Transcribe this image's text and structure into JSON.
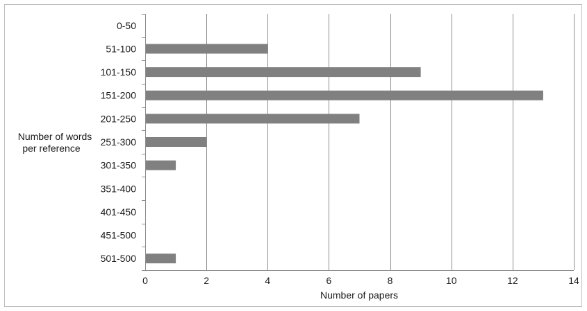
{
  "chart_data": {
    "type": "bar",
    "orientation": "horizontal",
    "categories": [
      "0-50",
      "51-100",
      "101-150",
      "151-200",
      "201-250",
      "251-300",
      "301-350",
      "351-400",
      "401-450",
      "451-500",
      "501-500"
    ],
    "values": [
      0,
      4,
      9,
      13,
      7,
      2,
      1,
      0,
      0,
      0,
      1
    ],
    "title": "",
    "xlabel": "Number of papers",
    "ylabel_lines": [
      "Number of words",
      "per reference"
    ],
    "xlim": [
      0,
      14
    ],
    "xticks": [
      0,
      2,
      4,
      6,
      8,
      10,
      12,
      14
    ],
    "grid": "vertical",
    "legend": "none",
    "bar_color": "#808080"
  }
}
